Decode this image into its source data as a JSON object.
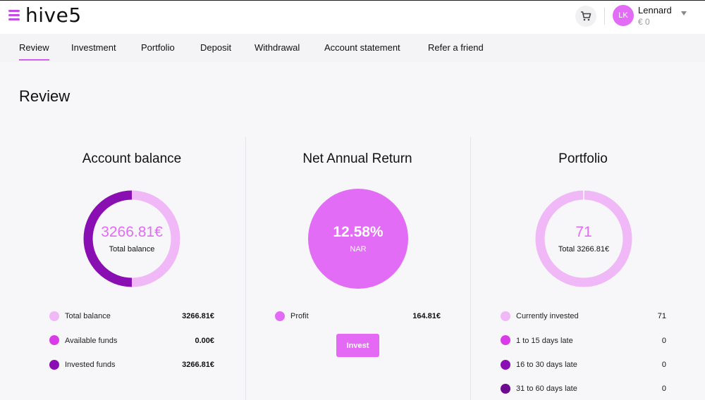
{
  "header": {
    "logo_text": "hive5",
    "user": {
      "initials": "LK",
      "name": "Lennard",
      "balance": "€ 0"
    }
  },
  "nav": {
    "items": [
      {
        "label": "Review",
        "active": true
      },
      {
        "label": "Investment"
      },
      {
        "label": "Portfolio"
      },
      {
        "label": "Deposit"
      },
      {
        "label": "Withdrawal"
      },
      {
        "label": "Account statement"
      },
      {
        "label": "Refer a friend"
      }
    ]
  },
  "page": {
    "title": "Review"
  },
  "colors": {
    "accent": "#e26cf5",
    "light_pink": "#f0b8f7",
    "magenta": "#d93be8",
    "purple": "#8a0fb3",
    "dark_purple": "#6d0a8f"
  },
  "account_balance": {
    "title": "Account balance",
    "center_value": "3266.81€",
    "center_label": "Total balance",
    "invested_fraction": 0.5,
    "legend": [
      {
        "label": "Total balance",
        "value": "3266.81€",
        "color": "#f0b8f7"
      },
      {
        "label": "Available funds",
        "value": "0.00€",
        "color": "#d93be8"
      },
      {
        "label": "Invested funds",
        "value": "3266.81€",
        "color": "#8a0fb3"
      }
    ]
  },
  "net_annual_return": {
    "title": "Net Annual Return",
    "center_value": "12.58%",
    "center_label": "NAR",
    "legend": [
      {
        "label": "Profit",
        "value": "164.81€",
        "color": "#e26cf5"
      }
    ],
    "invest_label": "Invest"
  },
  "portfolio": {
    "title": "Portfolio",
    "center_value": "71",
    "center_label": "Total 3266.81€",
    "legend": [
      {
        "label": "Currently invested",
        "value": "71",
        "color": "#f0b8f7"
      },
      {
        "label": "1 to 15 days late",
        "value": "0",
        "color": "#d93be8"
      },
      {
        "label": "16 to 30 days late",
        "value": "0",
        "color": "#8a0fb3"
      },
      {
        "label": "31 to 60 days late",
        "value": "0",
        "color": "#6d0a8f"
      }
    ]
  }
}
